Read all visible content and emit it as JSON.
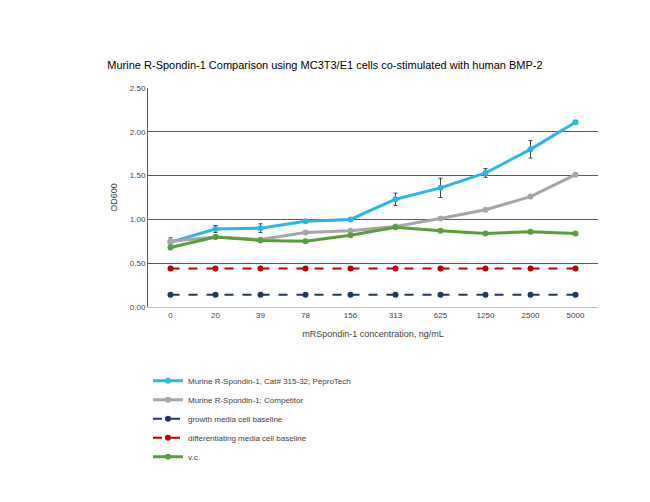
{
  "chart_data": {
    "type": "line",
    "title": "Murine R-Spondin-1 Comparison using MC3T3/E1 cells co-stimulated with human BMP-2",
    "x_label": "mRSpondin-1 concentration, ng/mL",
    "y_label": "OD600",
    "categories": [
      "0",
      "20",
      "39",
      "78",
      "156",
      "313",
      "625",
      "1250",
      "2500",
      "5000"
    ],
    "ylim": [
      0,
      2.5
    ],
    "yticks": [
      {
        "value": 0,
        "label": "0.00"
      },
      {
        "value": 0.5,
        "label": "0.50"
      },
      {
        "value": 1,
        "label": "1.00"
      },
      {
        "value": 1.5,
        "label": "1.50"
      },
      {
        "value": 2,
        "label": "2.00"
      },
      {
        "value": 2.5,
        "label": "2.50"
      }
    ],
    "grid": true,
    "legend": "bottom",
    "series": [
      {
        "name": "Murine R-Spondin-1, Cat# 315-32; PeproTech",
        "color": "#29b6e8",
        "marker": "circle",
        "line_style": "solid",
        "values": [
          0.74,
          0.89,
          0.9,
          0.98,
          1.0,
          1.23,
          1.36,
          1.53,
          1.8,
          2.11
        ],
        "errors": [
          0.05,
          0.04,
          0.05,
          0.01,
          0.01,
          0.07,
          0.11,
          0.05,
          0.1,
          0.01
        ]
      },
      {
        "name": "Murine R-Spondin-1; Competitor",
        "color": "#a6a6a6",
        "marker": "circle",
        "line_style": "solid",
        "values": [
          0.75,
          0.8,
          0.77,
          0.85,
          0.87,
          0.92,
          1.01,
          1.11,
          1.26,
          1.51
        ]
      },
      {
        "name": "growth media cell baseline",
        "color": "#1f3864",
        "marker": "circle",
        "line_style": "dash",
        "values": [
          0.14,
          0.14,
          0.14,
          0.14,
          0.14,
          0.14,
          0.14,
          0.14,
          0.14,
          0.14
        ]
      },
      {
        "name": "differentiating media cell baseline",
        "color": "#c00000",
        "marker": "circle",
        "line_style": "dash",
        "values": [
          0.44,
          0.44,
          0.44,
          0.44,
          0.44,
          0.44,
          0.44,
          0.44,
          0.44,
          0.44
        ]
      },
      {
        "name": "v.c.",
        "color": "#5a9e3a",
        "marker": "circle",
        "line_style": "solid",
        "values": [
          0.68,
          0.8,
          0.76,
          0.75,
          0.82,
          0.91,
          0.87,
          0.84,
          0.86,
          0.84
        ]
      }
    ]
  }
}
